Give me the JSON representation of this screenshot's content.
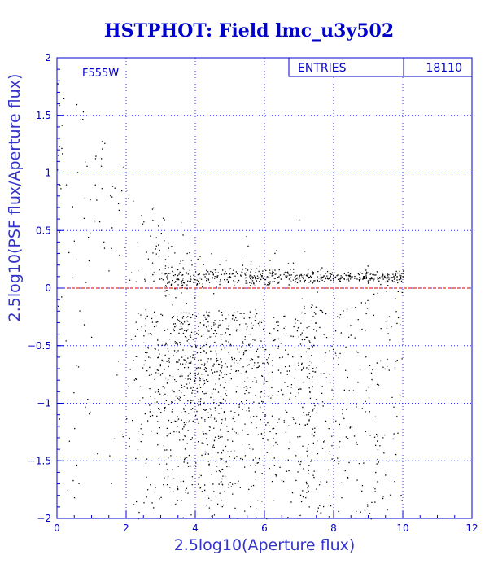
{
  "chart_data": {
    "type": "scatter",
    "title": "HSTPHOT: Field lmc_u3y502",
    "xlabel": "2.5log10(Aperture flux)",
    "ylabel": "2.5log10(PSF flux/Aperture flux)",
    "filter_label": "F555W",
    "stats": {
      "entries_label": "ENTRIES",
      "entries_value": "18110"
    },
    "xlim": [
      0,
      12
    ],
    "ylim": [
      -2,
      2
    ],
    "x_ticks": [
      0,
      2,
      4,
      6,
      8,
      10,
      12
    ],
    "x_tick_labels": [
      "0",
      "2",
      "4",
      "6",
      "8",
      "10",
      "12"
    ],
    "y_ticks": [
      -2,
      -1.5,
      -1,
      -0.5,
      0,
      0.5,
      1,
      1.5,
      2
    ],
    "y_tick_labels": [
      "−2",
      "−1.5",
      "−1",
      "−0.5",
      "0",
      "0.5",
      "1",
      "1.5",
      "2"
    ],
    "grid": true,
    "reference_line_y": 0,
    "point_count": 18110,
    "colors": {
      "frame": "#0000cc",
      "grid": "#3030ff",
      "points": "#000000",
      "reference_line": "#cc0000",
      "title": "#0000cc",
      "labels": "#3333cc"
    }
  }
}
